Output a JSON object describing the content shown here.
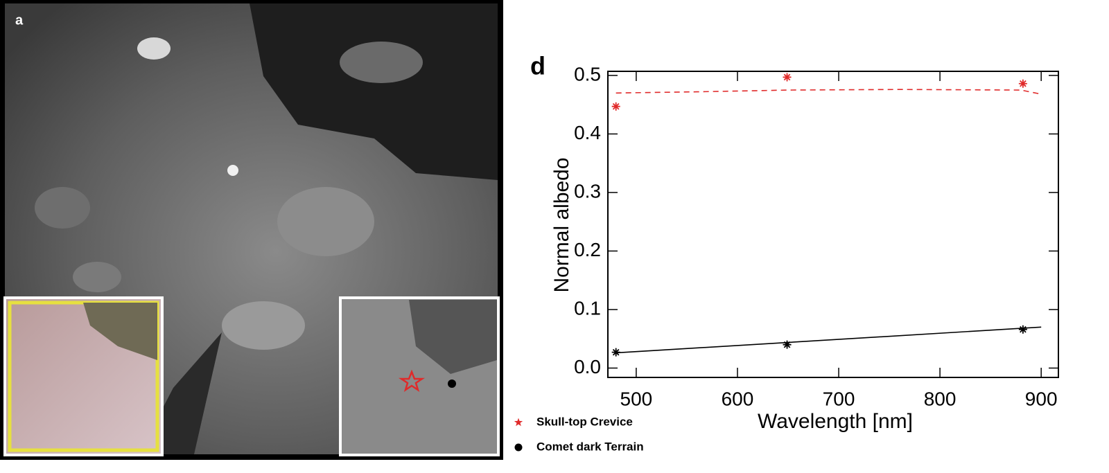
{
  "image_panel": {
    "label": "a"
  },
  "chart_data": {
    "type": "scatter",
    "title": "d",
    "x_label": "Wavelength [nm]",
    "y_label": "Normal albedo",
    "xlim": [
      472,
      917
    ],
    "ylim": [
      -0.016,
      0.507
    ],
    "xticks": [
      500,
      600,
      700,
      800,
      900
    ],
    "yticks": [
      {
        "value": 0,
        "label": "0.0"
      },
      0.1,
      0.2,
      0.3,
      0.4,
      0.5
    ],
    "series": [
      {
        "name": "Skull-top Crevice",
        "color": "#e02a2a",
        "legend_marker": "star",
        "x": [
          480,
          649,
          882
        ],
        "values": [
          0.447,
          0.497,
          0.486
        ]
      },
      {
        "name": "Comet dark Terrain",
        "color": "#000000",
        "legend_marker": "circle",
        "x": [
          480,
          649,
          882
        ],
        "values": [
          0.027,
          0.04,
          0.066
        ]
      }
    ],
    "fits": [
      {
        "color": "#e02a2a",
        "dashed": true,
        "x": [
          480,
          560,
          650,
          760,
          880,
          900
        ],
        "values": [
          0.47,
          0.472,
          0.475,
          0.476,
          0.475,
          0.468
        ]
      },
      {
        "color": "#000000",
        "dashed": false,
        "x": [
          480,
          900
        ],
        "values": [
          0.026,
          0.07
        ]
      }
    ]
  }
}
